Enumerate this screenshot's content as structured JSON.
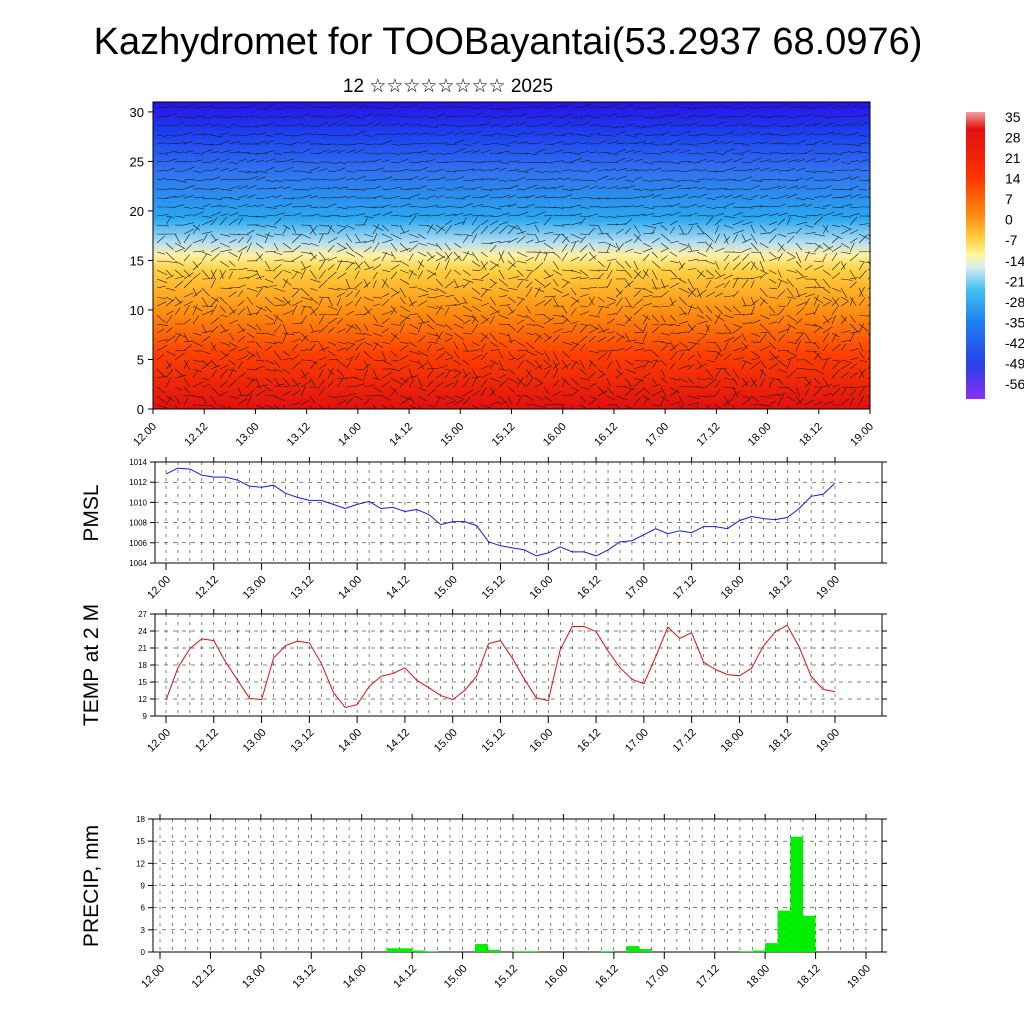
{
  "title": "Kazhydromet for TOOBayantai(53.2937 68.0976)",
  "subtitle": "12 ☆☆☆☆☆☆☆☆ 2025",
  "x_tick_labels": [
    "12.00",
    "12.12",
    "13.00",
    "13.12",
    "14.00",
    "14.12",
    "15.00",
    "15.12",
    "16.00",
    "16.12",
    "17.00",
    "17.12",
    "18.00",
    "18.12",
    "19.00"
  ],
  "colorbar": {
    "labels": [
      "35",
      "28",
      "21",
      "14",
      "7",
      "0",
      "-7",
      "-14",
      "-21",
      "-28",
      "-35",
      "-42",
      "-49",
      "-56"
    ]
  },
  "chart_data": [
    {
      "type": "heatmap",
      "title": "",
      "xlabel": "",
      "ylabel": "",
      "x_ticks": [
        "12.00",
        "12.12",
        "13.00",
        "13.12",
        "14.00",
        "14.12",
        "15.00",
        "15.12",
        "16.00",
        "16.12",
        "17.00",
        "17.12",
        "18.00",
        "18.12",
        "19.00"
      ],
      "y_ticks": [
        0,
        5,
        10,
        15,
        20,
        25,
        30
      ],
      "ylim": [
        0,
        31
      ],
      "colorbar_range": [
        -56,
        35
      ],
      "description_values": "temperature cross-section with wind barbs overlay",
      "levels": [
        0,
        5,
        10,
        15,
        20,
        25,
        30
      ],
      "temperature_by_level": [
        25,
        18,
        8,
        -5,
        -25,
        -45,
        -56
      ]
    },
    {
      "type": "line",
      "ylabel": "PMSL",
      "ylim": [
        1004,
        1014
      ],
      "y_ticks": [
        1004,
        1006,
        1008,
        1010,
        1012,
        1014
      ],
      "x_ticks": [
        "12.00",
        "12.12",
        "13.00",
        "13.12",
        "14.00",
        "14.12",
        "15.00",
        "15.12",
        "16.00",
        "16.12",
        "17.00",
        "17.12",
        "18.00",
        "18.12",
        "19.00"
      ],
      "series": [
        {
          "color": "#1020d0",
          "values": [
            1012.8,
            1013.4,
            1013.3,
            1012.7,
            1012.5,
            1012.5,
            1012.2,
            1011.6,
            1011.5,
            1011.7,
            1010.9,
            1010.5,
            1010.2,
            1010.2,
            1009.8,
            1009.4,
            1009.8,
            1010.1,
            1009.4,
            1009.5,
            1009.1,
            1009.3,
            1008.8,
            1007.8,
            1008.1,
            1008.1,
            1007.7,
            1006.1,
            1005.7,
            1005.5,
            1005.3,
            1004.7,
            1005.0,
            1005.6,
            1005.1,
            1005.1,
            1004.7,
            1005.3,
            1006.1,
            1006.2,
            1006.8,
            1007.4,
            1006.9,
            1007.2,
            1007.0,
            1007.6,
            1007.6,
            1007.4,
            1008.2,
            1008.6,
            1008.4,
            1008.3,
            1008.5,
            1009.4,
            1010.6,
            1010.8,
            1011.9
          ]
        }
      ]
    },
    {
      "type": "line",
      "ylabel": "TEMP at 2 M",
      "ylim": [
        9,
        27
      ],
      "y_ticks": [
        9,
        12,
        15,
        18,
        21,
        24,
        27
      ],
      "x_ticks": [
        "12.00",
        "12.12",
        "13.00",
        "13.12",
        "14.00",
        "14.12",
        "15.00",
        "15.12",
        "16.00",
        "16.12",
        "17.00",
        "17.12",
        "18.00",
        "18.12",
        "19.00"
      ],
      "series": [
        {
          "color": "#e01010",
          "values": [
            11.8,
            17.5,
            20.9,
            22.6,
            22.3,
            18.5,
            15.3,
            12.1,
            11.9,
            19.2,
            21.4,
            22.2,
            21.9,
            18.3,
            13.2,
            10.5,
            11.0,
            14.2,
            16.0,
            16.5,
            17.5,
            15.3,
            14.0,
            12.6,
            11.9,
            13.5,
            16.0,
            21.8,
            22.3,
            19.2,
            15.5,
            12.2,
            11.7,
            20.7,
            24.8,
            24.8,
            23.9,
            20.5,
            17.5,
            15.5,
            14.7,
            19.5,
            24.7,
            22.7,
            23.7,
            18.5,
            17.2,
            16.3,
            16.1,
            17.4,
            21.3,
            23.9,
            25.0,
            21.2,
            16.0,
            13.7,
            13.3
          ]
        }
      ]
    },
    {
      "type": "bar",
      "ylabel": "PRECIP, mm",
      "ylim": [
        0,
        18
      ],
      "y_ticks": [
        0,
        3,
        6,
        9,
        12,
        15,
        18
      ],
      "x_ticks": [
        "12.00",
        "12.12",
        "13.00",
        "13.12",
        "14.00",
        "14.12",
        "15.00",
        "15.12",
        "16.00",
        "16.12",
        "17.00",
        "17.12",
        "18.00",
        "18.12",
        "19.00"
      ],
      "color": "#00ee00",
      "values": [
        0,
        0,
        0,
        0,
        0,
        0,
        0,
        0,
        0,
        0,
        0,
        0,
        0,
        0,
        0,
        0,
        0,
        0,
        0.5,
        0.5,
        0.2,
        0.1,
        0,
        0,
        0,
        1.1,
        0.3,
        0,
        0.1,
        0.1,
        0,
        0,
        0,
        0,
        0,
        0.1,
        0,
        0.8,
        0.4,
        0,
        0,
        0,
        0,
        0,
        0,
        0,
        0.1,
        0.2,
        1.2,
        5.6,
        15.6,
        4.9,
        0,
        0,
        0,
        0,
        0
      ]
    }
  ]
}
